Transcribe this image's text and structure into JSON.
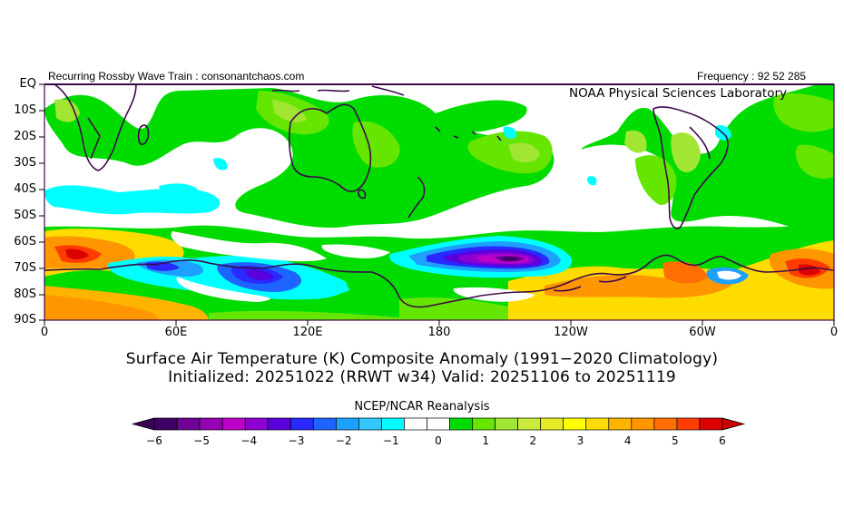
{
  "header": {
    "left": "Recurring Rossby Wave Train : consonantchaos.com",
    "right": "Frequency : 92 52 285",
    "lab": "NOAA Physical Sciences Laboratory"
  },
  "map": {
    "lat_labels": [
      "EQ",
      "10S",
      "20S",
      "30S",
      "40S",
      "50S",
      "60S",
      "70S",
      "80S",
      "90S"
    ],
    "lon_labels": [
      "0",
      "60E",
      "120E",
      "180",
      "120W",
      "60W",
      "0"
    ],
    "colors": {
      "land_outline": "#3c0a4a",
      "frame": "#3c0a4a"
    }
  },
  "title": {
    "line1": "Surface Air Temperature (K) Composite Anomaly (1991−2020 Climatology)",
    "line2": "Initialized: 20251022 (RRWT w34) Valid: 20251106 to 20251119"
  },
  "colorbar": {
    "caption": "NCEP/NCAR Reanalysis",
    "ticks": [
      "−6",
      "−5",
      "−4",
      "−3",
      "−2",
      "−1",
      "0",
      "1",
      "2",
      "3",
      "4",
      "5",
      "6"
    ],
    "colors": [
      "#3c0064",
      "#6e0096",
      "#9600b4",
      "#be00c8",
      "#8c00d2",
      "#5a00dc",
      "#2828ff",
      "#1e64ff",
      "#1ea0ff",
      "#32c8ff",
      "#00ffff",
      "#ffffff",
      "#ffffff",
      "#00dc00",
      "#64e600",
      "#a0e632",
      "#c8eb3c",
      "#e6eb28",
      "#ffff00",
      "#ffdc00",
      "#ffb400",
      "#ff9600",
      "#ff6e00",
      "#ff3c00",
      "#dc0000"
    ],
    "under_color": "#3c0050",
    "over_color": "#c80000"
  }
}
